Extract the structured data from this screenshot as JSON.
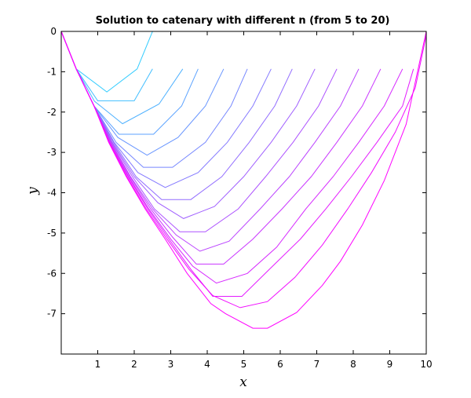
{
  "chart_data": {
    "type": "line",
    "title": "Solution to catenary with different n (from 5 to 20)",
    "xlabel": "x",
    "ylabel": "y",
    "xlim": [
      0,
      10
    ],
    "ylim": [
      -8,
      0
    ],
    "xticks": [
      1,
      2,
      3,
      4,
      5,
      6,
      7,
      8,
      9,
      10
    ],
    "xtick_labels": [
      "1",
      "2",
      "3",
      "4",
      "5",
      "6",
      "7",
      "8",
      "9",
      "10"
    ],
    "yticks": [
      0,
      -1,
      -2,
      -3,
      -4,
      -5,
      -6,
      -7
    ],
    "ytick_labels": [
      "0",
      "-1",
      "-2",
      "-3",
      "-4",
      "-5",
      "-6",
      "-7"
    ],
    "grid": false,
    "legend": "none",
    "color_start": "#33ccff",
    "color_end": "#ff00ff",
    "series": [
      {
        "n": 5,
        "x": [
          0,
          0.41,
          1.25,
          2.08,
          2.5
        ],
        "y": [
          0,
          -0.93,
          -1.5,
          -0.93,
          0
        ]
      },
      {
        "n": 6,
        "x": [
          0,
          0.41,
          1.0,
          2.0,
          2.5
        ],
        "y": [
          0,
          -0.93,
          -1.72,
          -1.72,
          -0.93
        ]
      },
      {
        "n": 7,
        "x": [
          0,
          0.41,
          0.91,
          1.68,
          2.68,
          3.33
        ],
        "y": [
          0,
          -0.93,
          -1.73,
          -2.29,
          -1.8,
          -0.93
        ]
      },
      {
        "n": 8,
        "x": [
          0,
          0.41,
          0.9,
          1.58,
          2.53,
          3.3,
          3.75
        ],
        "y": [
          0,
          -0.93,
          -1.85,
          -2.55,
          -2.55,
          -1.85,
          -0.93
        ]
      },
      {
        "n": 9,
        "x": [
          0,
          0.41,
          0.9,
          1.55,
          2.35,
          3.2,
          3.95,
          4.45
        ],
        "y": [
          0,
          -0.93,
          -1.85,
          -2.63,
          -3.07,
          -2.63,
          -1.85,
          -0.93
        ]
      },
      {
        "n": 10,
        "x": [
          0,
          0.41,
          0.9,
          1.5,
          2.25,
          3.05,
          3.95,
          4.65,
          5.1
        ],
        "y": [
          0,
          -0.93,
          -1.85,
          -2.75,
          -3.37,
          -3.37,
          -2.75,
          -1.85,
          -0.93
        ]
      },
      {
        "n": 11,
        "x": [
          0,
          0.41,
          0.9,
          1.45,
          2.1,
          2.85,
          3.75,
          4.55,
          5.25,
          5.75
        ],
        "y": [
          0,
          -0.93,
          -1.85,
          -2.75,
          -3.5,
          -3.87,
          -3.5,
          -2.75,
          -1.85,
          -0.93
        ]
      },
      {
        "n": 12,
        "x": [
          0,
          0.41,
          0.9,
          1.43,
          2.05,
          2.75,
          3.55,
          4.4,
          5.15,
          5.85,
          6.33
        ],
        "y": [
          0,
          -0.93,
          -1.85,
          -2.75,
          -3.6,
          -4.17,
          -4.17,
          -3.6,
          -2.75,
          -1.85,
          -0.93
        ]
      },
      {
        "n": 13,
        "x": [
          0,
          0.41,
          0.9,
          1.4,
          2.0,
          2.65,
          3.35,
          4.2,
          5.0,
          5.75,
          6.45,
          6.95
        ],
        "y": [
          0,
          -0.93,
          -1.85,
          -2.75,
          -3.6,
          -4.25,
          -4.64,
          -4.34,
          -3.6,
          -2.75,
          -1.85,
          -0.93
        ]
      },
      {
        "n": 14,
        "x": [
          0,
          0.41,
          0.9,
          1.38,
          1.95,
          2.55,
          3.25,
          3.95,
          4.85,
          5.6,
          6.35,
          7.05,
          7.55
        ],
        "y": [
          0,
          -0.93,
          -1.85,
          -2.75,
          -3.6,
          -4.4,
          -4.97,
          -4.97,
          -4.4,
          -3.6,
          -2.75,
          -1.85,
          -0.93
        ]
      },
      {
        "n": 15,
        "x": [
          0,
          0.41,
          0.9,
          1.36,
          1.9,
          2.5,
          3.15,
          3.8,
          4.6,
          5.45,
          6.25,
          6.95,
          7.65,
          8.15
        ],
        "y": [
          0,
          -0.93,
          -1.85,
          -2.75,
          -3.6,
          -4.4,
          -5.05,
          -5.45,
          -5.2,
          -4.4,
          -3.6,
          -2.75,
          -1.85,
          -0.93
        ]
      },
      {
        "n": 16,
        "x": [
          0,
          0.41,
          0.9,
          1.35,
          1.88,
          2.45,
          3.05,
          3.7,
          4.45,
          5.25,
          6.05,
          6.85,
          7.55,
          8.25,
          8.75
        ],
        "y": [
          0,
          -0.93,
          -1.85,
          -2.75,
          -3.6,
          -4.4,
          -5.1,
          -5.77,
          -5.77,
          -5.15,
          -4.4,
          -3.6,
          -2.75,
          -1.85,
          -0.93
        ]
      },
      {
        "n": 17,
        "x": [
          0,
          0.41,
          0.9,
          1.33,
          1.85,
          2.4,
          3.0,
          3.6,
          4.25,
          5.1,
          5.9,
          6.7,
          7.45,
          8.15,
          8.85,
          9.35
        ],
        "y": [
          0,
          -0.93,
          -1.85,
          -2.75,
          -3.6,
          -4.4,
          -5.15,
          -5.82,
          -6.24,
          -6.0,
          -5.35,
          -4.4,
          -3.6,
          -2.75,
          -1.85,
          -0.93
        ]
      },
      {
        "n": 18,
        "x": [
          0,
          0.41,
          0.9,
          1.32,
          1.83,
          2.37,
          2.95,
          3.55,
          4.15,
          4.95,
          5.7,
          6.55,
          7.25,
          7.95,
          8.65,
          9.35,
          9.65
        ],
        "y": [
          0,
          -0.93,
          -1.85,
          -2.75,
          -3.6,
          -4.4,
          -5.15,
          -5.9,
          -6.57,
          -6.57,
          -5.9,
          -5.15,
          -4.4,
          -3.6,
          -2.75,
          -1.85,
          -0.93
        ]
      },
      {
        "n": 19,
        "x": [
          0,
          0.41,
          0.9,
          1.31,
          1.8,
          2.33,
          2.9,
          3.5,
          4.15,
          4.9,
          5.65,
          6.4,
          7.15,
          7.85,
          8.5,
          9.15,
          9.7,
          10.0
        ],
        "y": [
          0,
          -0.93,
          -1.85,
          -2.75,
          -3.6,
          -4.4,
          -5.15,
          -5.9,
          -6.55,
          -6.85,
          -6.7,
          -6.1,
          -5.3,
          -4.4,
          -3.5,
          -2.5,
          -1.4,
          -0.1
        ]
      },
      {
        "n": 20,
        "x": [
          0,
          0.41,
          0.9,
          1.3,
          1.78,
          2.3,
          2.85,
          3.45,
          4.1,
          4.5,
          5.25,
          5.65,
          6.45,
          7.15,
          7.65,
          8.25,
          8.85,
          9.45,
          10.0
        ],
        "y": [
          0,
          -0.93,
          -1.85,
          -2.75,
          -3.6,
          -4.4,
          -5.15,
          -6.0,
          -6.75,
          -7.0,
          -7.36,
          -7.36,
          -6.97,
          -6.3,
          -5.7,
          -4.8,
          -3.7,
          -2.3,
          0
        ]
      }
    ]
  }
}
